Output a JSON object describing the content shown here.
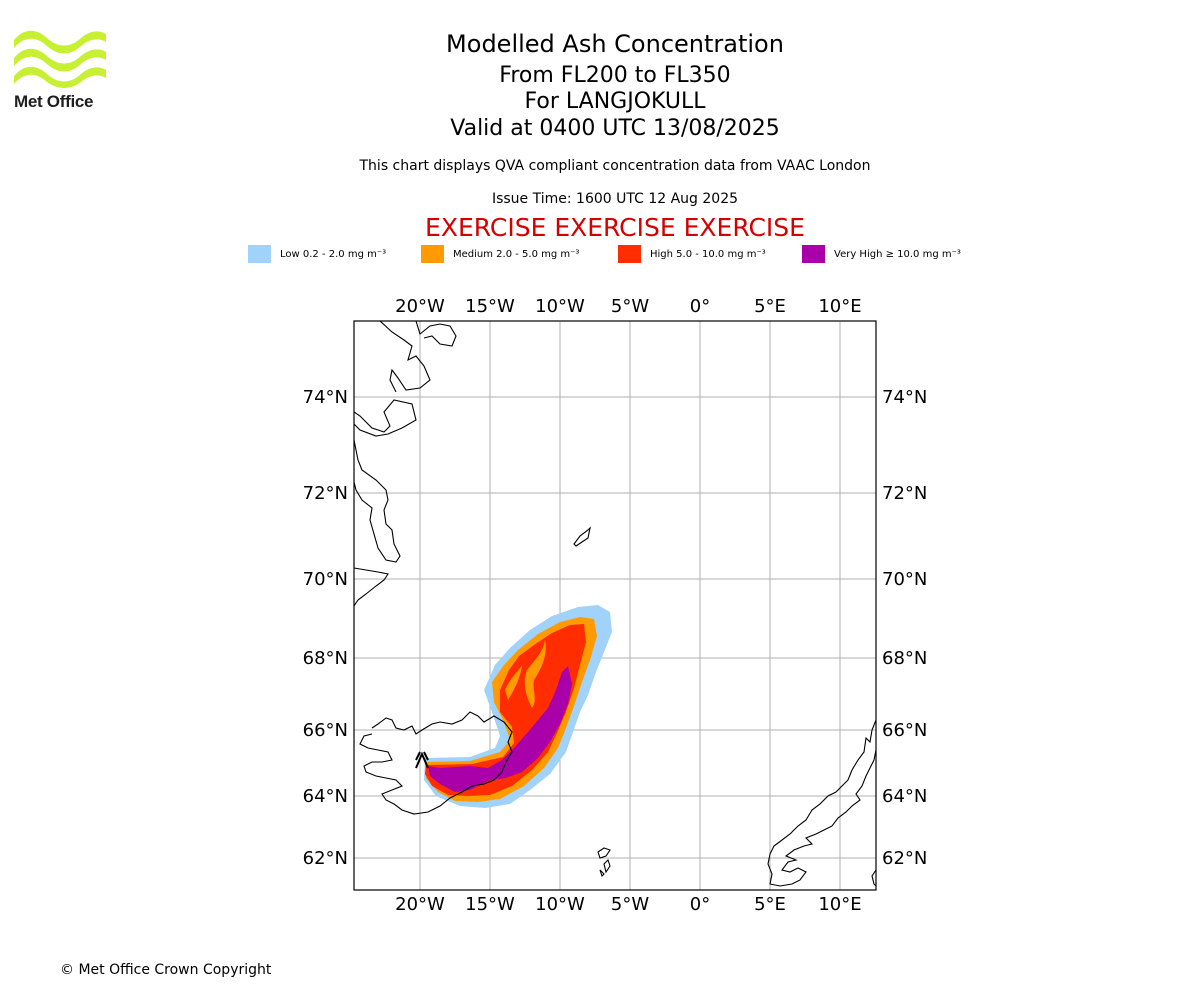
{
  "header": {
    "logo_text": "Met Office",
    "title": "Modelled Ash Concentration",
    "levels": "From FL200 to FL350",
    "volcano": "For LANGJOKULL",
    "valid": "Valid at 0400 UTC 13/08/2025",
    "description": "This chart displays QVA compliant concentration data from VAAC London",
    "issue_time": "Issue Time: 1600 UTC 12 Aug 2025",
    "exercise": "EXERCISE EXERCISE EXERCISE"
  },
  "legend": [
    {
      "label": "Low 0.2 - 2.0 mg m⁻³",
      "color": "#a0d2fa"
    },
    {
      "label": "Medium 2.0 - 5.0 mg m⁻³",
      "color": "#ff9b00"
    },
    {
      "label": "High 5.0 - 10.0 mg m⁻³",
      "color": "#ff2d00"
    },
    {
      "label": "Very High ≥ 10.0 mg m⁻³",
      "color": "#aa00aa"
    }
  ],
  "map": {
    "longitude_labels": [
      "20°W",
      "15°W",
      "10°W",
      "5°W",
      "0°",
      "5°E",
      "10°E"
    ],
    "latitude_labels": [
      "74°N",
      "72°N",
      "70°N",
      "68°N",
      "66°N",
      "64°N",
      "62°N"
    ],
    "lon_range": [
      "24.7°W",
      "12.5°E"
    ],
    "lat_range": [
      "61.2°N",
      "75.8°N"
    ],
    "gridlines": true,
    "ash_source": "Langjökull, Iceland",
    "plume_direction": "east then north-east"
  },
  "footer": {
    "copyright": "© Met Office Crown Copyright"
  }
}
